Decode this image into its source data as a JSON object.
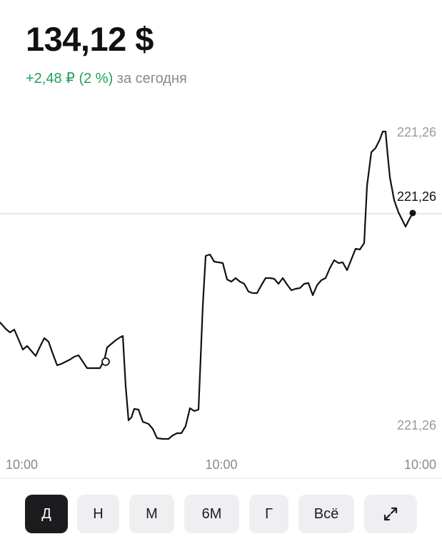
{
  "price": "134,12 $",
  "change": {
    "delta": "+2,48 ₽ (2 %)",
    "period": "за сегодня"
  },
  "chart_data": {
    "type": "line",
    "x_tick_labels": [
      "10:00",
      "10:00",
      "10:00"
    ],
    "y_tick_labels": [
      "221,26",
      "221,26"
    ],
    "last_value_label": "221,26",
    "reference_line": "horizontal line at last value",
    "series": [
      {
        "color": "#111111",
        "points": [
          [
            0,
            451
          ],
          [
            8,
            460
          ],
          [
            14,
            465
          ],
          [
            20,
            461
          ],
          [
            26,
            475
          ],
          [
            32,
            489
          ],
          [
            38,
            484
          ],
          [
            44,
            491
          ],
          [
            50,
            498
          ],
          [
            56,
            485
          ],
          [
            62,
            473
          ],
          [
            68,
            478
          ],
          [
            74,
            495
          ],
          [
            80,
            511
          ],
          [
            86,
            509
          ],
          [
            92,
            506
          ],
          [
            98,
            503
          ],
          [
            104,
            499
          ],
          [
            110,
            497
          ],
          [
            116,
            506
          ],
          [
            122,
            515
          ],
          [
            128,
            515
          ],
          [
            134,
            515
          ],
          [
            140,
            515
          ],
          [
            146,
            504
          ],
          [
            150,
            486
          ],
          [
            156,
            481
          ],
          [
            162,
            476
          ],
          [
            168,
            472
          ],
          [
            172,
            470
          ],
          [
            176,
            540
          ],
          [
            180,
            588
          ],
          [
            184,
            584
          ],
          [
            188,
            572
          ],
          [
            194,
            573
          ],
          [
            200,
            590
          ],
          [
            208,
            593
          ],
          [
            214,
            600
          ],
          [
            220,
            613
          ],
          [
            228,
            614
          ],
          [
            236,
            614
          ],
          [
            242,
            609
          ],
          [
            248,
            606
          ],
          [
            254,
            606
          ],
          [
            260,
            596
          ],
          [
            266,
            571
          ],
          [
            272,
            575
          ],
          [
            278,
            573
          ],
          [
            284,
            428
          ],
          [
            288,
            358
          ],
          [
            294,
            356
          ],
          [
            300,
            366
          ],
          [
            306,
            367
          ],
          [
            312,
            368
          ],
          [
            318,
            391
          ],
          [
            324,
            394
          ],
          [
            330,
            389
          ],
          [
            336,
            394
          ],
          [
            342,
            397
          ],
          [
            348,
            408
          ],
          [
            354,
            410
          ],
          [
            360,
            410
          ],
          [
            366,
            399
          ],
          [
            372,
            389
          ],
          [
            378,
            389
          ],
          [
            384,
            390
          ],
          [
            390,
            397
          ],
          [
            396,
            389
          ],
          [
            402,
            398
          ],
          [
            408,
            406
          ],
          [
            414,
            404
          ],
          [
            420,
            403
          ],
          [
            426,
            397
          ],
          [
            432,
            396
          ],
          [
            438,
            413
          ],
          [
            444,
            399
          ],
          [
            450,
            392
          ],
          [
            456,
            389
          ],
          [
            462,
            375
          ],
          [
            468,
            364
          ],
          [
            474,
            368
          ],
          [
            480,
            367
          ],
          [
            486,
            378
          ],
          [
            492,
            363
          ],
          [
            498,
            348
          ],
          [
            504,
            349
          ],
          [
            510,
            340
          ],
          [
            514,
            260
          ],
          [
            520,
            213
          ],
          [
            526,
            207
          ],
          [
            532,
            195
          ],
          [
            536,
            184
          ],
          [
            540,
            184
          ],
          [
            542,
            207
          ],
          [
            546,
            248
          ],
          [
            552,
            280
          ],
          [
            558,
            297
          ],
          [
            564,
            309
          ],
          [
            568,
            317
          ],
          [
            572,
            309
          ],
          [
            578,
            298
          ]
        ],
        "marker_start": [
          148,
          506
        ],
        "marker_end": [
          578,
          298
        ]
      }
    ]
  },
  "timeframes": [
    {
      "label": "Д",
      "active": true
    },
    {
      "label": "Н",
      "active": false
    },
    {
      "label": "М",
      "active": false
    },
    {
      "label": "6М",
      "active": false
    },
    {
      "label": "Г",
      "active": false
    },
    {
      "label": "Всё",
      "active": false
    },
    {
      "label": "",
      "icon": "expand-icon",
      "active": false
    }
  ]
}
